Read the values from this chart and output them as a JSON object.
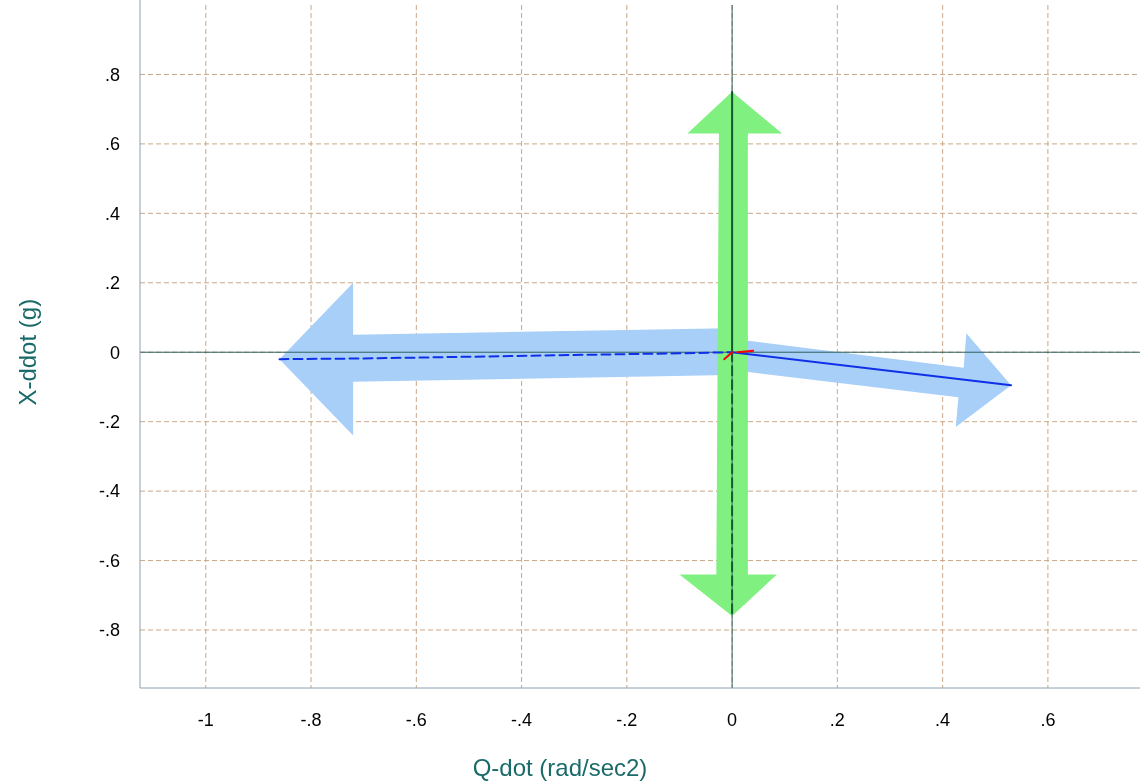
{
  "chart_data": {
    "type": "line",
    "xlabel": "Q-dot (rad/sec2)",
    "ylabel": "X-ddot (g)",
    "xlim": [
      -1.125,
      0.775
    ],
    "ylim": [
      -0.967,
      1.0
    ],
    "xticks": [
      -1,
      {
        "value": -0.8,
        "label": "-.8"
      },
      {
        "value": -0.6,
        "label": "-.6"
      },
      {
        "value": -0.4,
        "label": "-.4"
      },
      {
        "value": -0.2,
        "label": "-.2"
      },
      0,
      {
        "value": 0.2,
        "label": ".2"
      },
      {
        "value": 0.4,
        "label": ".4"
      },
      {
        "value": 0.6,
        "label": ".6"
      }
    ],
    "yticks": [
      {
        "value": -0.8,
        "label": "-.8"
      },
      {
        "value": -0.6,
        "label": "-.6"
      },
      {
        "value": -0.4,
        "label": "-.4"
      },
      {
        "value": -0.2,
        "label": "-.2"
      },
      0,
      {
        "value": 0.2,
        "label": ".2"
      },
      {
        "value": 0.4,
        "label": ".4"
      },
      {
        "value": 0.6,
        "label": ".6"
      },
      {
        "value": 0.8,
        "label": ".8"
      }
    ],
    "grid": true,
    "marker": "none",
    "series": [
      {
        "color": "#1030e8",
        "line_style": "dashed",
        "x": [
          -0.86,
          -0.7,
          -0.5,
          -0.3,
          -0.1,
          0
        ],
        "values": [
          -0.02,
          -0.018,
          -0.013,
          -0.008,
          -0.003,
          0
        ]
      },
      {
        "color": "#1030e8",
        "line_style": "solid",
        "x": [
          0,
          0.53
        ],
        "values": [
          0,
          -0.095
        ]
      },
      {
        "color": "#145a32",
        "line_style": "solid",
        "x": [
          0,
          0
        ],
        "values": [
          0,
          0.75
        ]
      },
      {
        "color": "#145a32",
        "line_style": "dashed",
        "x": [
          0,
          0
        ],
        "values": [
          0,
          -0.76
        ]
      },
      {
        "color": "#ff0000",
        "line_style": "solid",
        "x": [
          -0.015,
          0
        ],
        "values": [
          -0.02,
          0
        ]
      },
      {
        "color": "#ff0000",
        "line_style": "solid",
        "x": [
          0.01,
          0.04
        ],
        "values": [
          0,
          0.004
        ]
      }
    ]
  }
}
